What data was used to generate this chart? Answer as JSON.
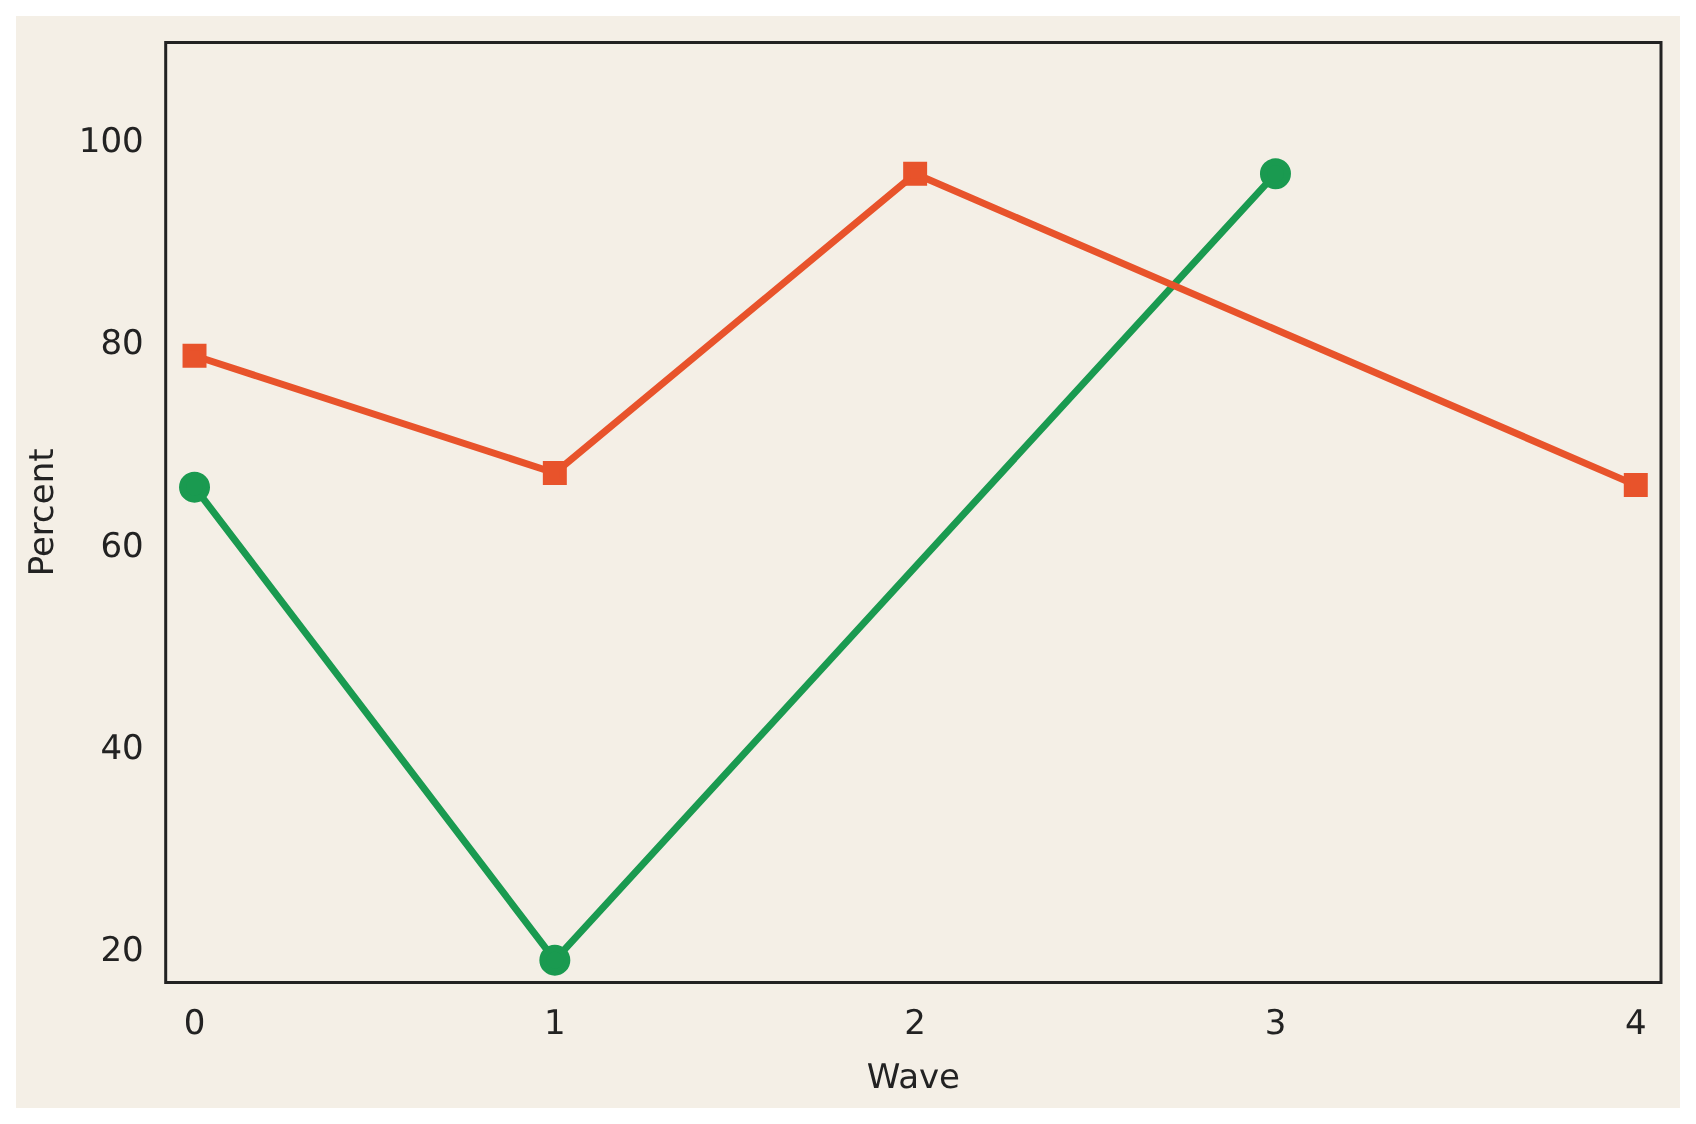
{
  "chart_data": {
    "type": "line",
    "xlabel": "Wave",
    "ylabel": "Percent",
    "xlim": [
      -0.08,
      4.07
    ],
    "ylim": [
      17,
      110
    ],
    "xticks": [
      0,
      1,
      2,
      3,
      4
    ],
    "yticks": [
      20,
      40,
      60,
      80,
      100
    ],
    "grid": false,
    "legend": false,
    "line_style": "solid",
    "series": [
      {
        "color": "#e8532b",
        "marker": "square",
        "x": [
          0,
          1,
          2,
          4
        ],
        "values": [
          79,
          67.4,
          97,
          66.2
        ]
      },
      {
        "color": "#1a9a50",
        "marker": "circle",
        "x": [
          0,
          1,
          3
        ],
        "values": [
          66,
          19.2,
          97
        ]
      }
    ]
  }
}
